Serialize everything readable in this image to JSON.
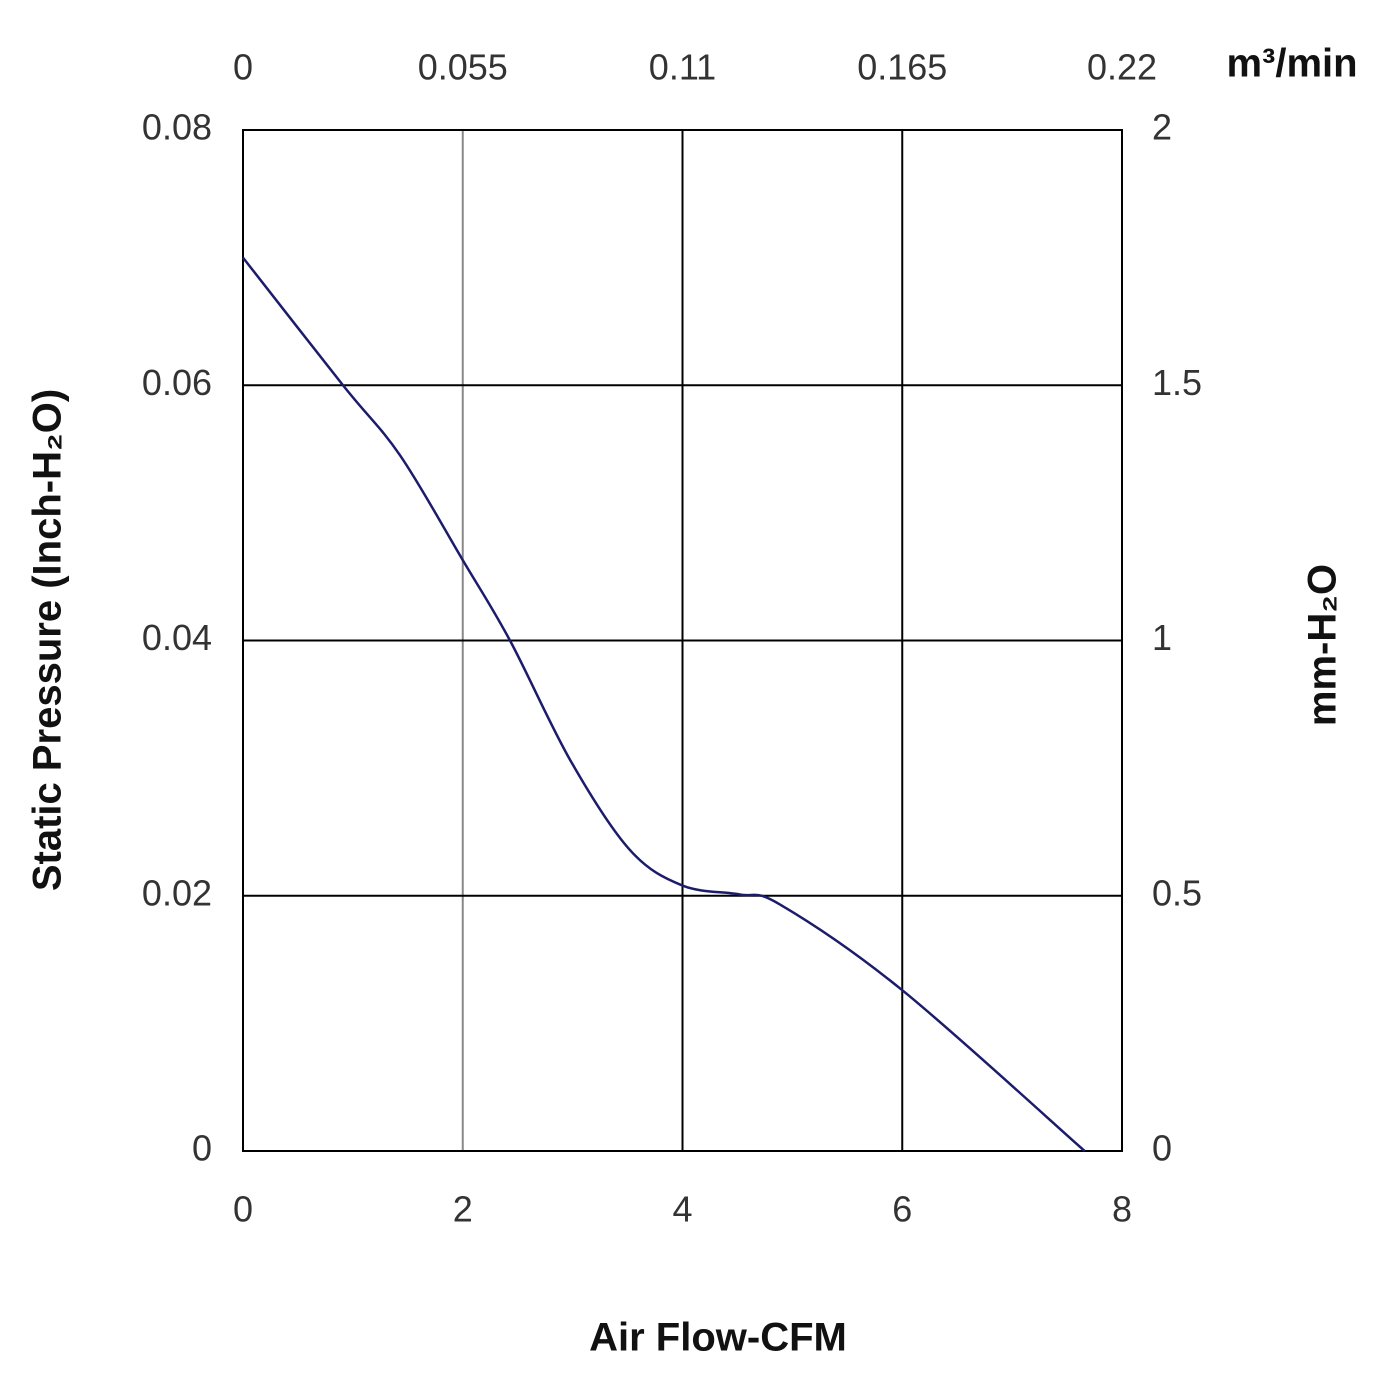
{
  "chart_data": {
    "type": "line",
    "xlabel": "Air Flow-CFM",
    "ylabel": "Static Pressure (Inch-H₂O)",
    "x2label": "m³/min",
    "y2label": "mm-H₂O",
    "xlim": [
      0,
      8
    ],
    "xticks": [
      0,
      2,
      4,
      6,
      8
    ],
    "ylim": [
      0,
      0.08
    ],
    "yticks": [
      0,
      0.02,
      0.04,
      0.06,
      0.08
    ],
    "x2lim": [
      0,
      0.22
    ],
    "x2ticks": [
      0,
      0.055,
      0.11,
      0.165,
      0.22
    ],
    "y2lim": [
      0,
      2
    ],
    "y2ticks": [
      0,
      0.5,
      1,
      1.5,
      2
    ],
    "grid": true,
    "series": [
      {
        "color": "#1c1c6b",
        "x": [
          0,
          0.91,
          1.43,
          2.0,
          2.43,
          2.98,
          3.52,
          4.0,
          4.52,
          4.89,
          6.0,
          7.66
        ],
        "values": [
          0.07,
          0.06,
          0.0545,
          0.0463,
          0.04,
          0.0306,
          0.0236,
          0.0208,
          0.0201,
          0.0193,
          0.0126,
          0
        ]
      }
    ]
  }
}
